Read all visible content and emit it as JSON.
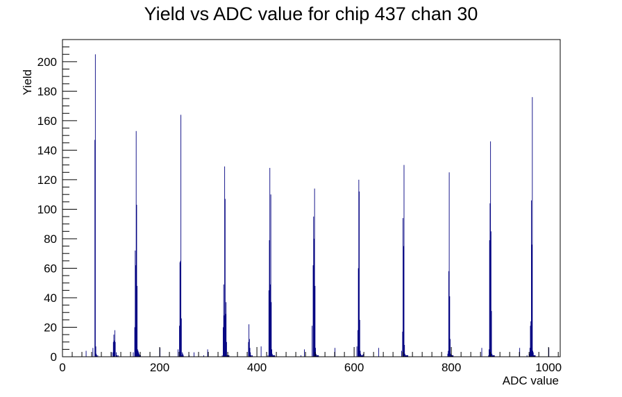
{
  "chart_data": {
    "type": "bar",
    "title": "Yield vs ADC value for chip 437 chan 30",
    "xlabel": "ADC value",
    "ylabel": "Yield",
    "xlim": [
      0,
      1024
    ],
    "ylim": [
      0,
      215
    ],
    "x_ticks": [
      0,
      200,
      400,
      600,
      800,
      1000
    ],
    "y_ticks": [
      0,
      20,
      40,
      60,
      80,
      100,
      120,
      140,
      160,
      180,
      200
    ],
    "grid": false,
    "legend": "none",
    "line_color": "#000080",
    "series": [
      {
        "x": [
          48,
          62,
          66,
          67,
          68,
          69,
          70,
          72,
          100,
          103,
          104,
          105,
          106,
          107,
          108,
          110,
          111,
          112,
          114,
          145,
          148,
          149,
          150,
          151,
          152,
          153,
          154,
          155,
          156,
          157,
          158,
          159,
          160,
          200,
          237,
          240,
          241,
          242,
          243,
          244,
          245,
          246,
          247,
          248,
          260,
          270,
          290,
          298,
          328,
          330,
          331,
          332,
          333,
          334,
          335,
          336,
          337,
          338,
          339,
          340,
          341,
          342,
          382,
          383,
          384,
          385,
          386,
          387,
          388,
          390,
          408,
          422,
          424,
          425,
          426,
          427,
          428,
          429,
          430,
          431,
          432,
          433,
          434,
          435,
          436,
          490,
          497,
          513,
          515,
          516,
          517,
          518,
          519,
          520,
          521,
          522,
          523,
          524,
          525,
          526,
          560,
          605,
          607,
          608,
          609,
          610,
          611,
          612,
          613,
          614,
          615,
          616,
          617,
          618,
          650,
          697,
          699,
          700,
          701,
          702,
          703,
          704,
          705,
          706,
          707,
          708,
          709,
          710,
          792,
          793,
          794,
          795,
          796,
          797,
          798,
          799,
          800,
          801,
          802,
          803,
          862,
          876,
          877,
          878,
          879,
          880,
          881,
          882,
          883,
          884,
          885,
          886,
          887,
          888,
          940,
          955,
          960,
          961,
          962,
          963,
          964,
          965,
          966,
          967,
          968,
          969,
          970,
          971,
          972,
          1000
        ],
        "values": [
          4,
          6,
          147,
          205,
          7,
          2,
          1,
          1,
          3,
          3,
          10,
          15,
          11,
          18,
          10,
          3,
          1,
          1,
          1,
          3,
          20,
          72,
          62,
          153,
          103,
          48,
          5,
          4,
          3,
          2,
          1,
          1,
          1,
          6,
          5,
          21,
          64,
          65,
          164,
          26,
          1,
          3,
          2,
          1,
          1,
          3,
          1,
          5,
          1,
          20,
          49,
          28,
          129,
          107,
          29,
          37,
          10,
          1,
          1,
          1,
          1,
          1,
          10,
          22,
          12,
          6,
          3,
          1,
          1,
          1,
          7,
          1,
          45,
          79,
          128,
          49,
          110,
          37,
          5,
          2,
          1,
          1,
          1,
          1,
          1,
          1,
          5,
          21,
          62,
          95,
          80,
          114,
          48,
          6,
          2,
          1,
          1,
          1,
          1,
          1,
          6,
          7,
          18,
          60,
          120,
          112,
          25,
          4,
          2,
          1,
          1,
          1,
          1,
          2,
          6,
          4,
          17,
          94,
          75,
          130,
          8,
          2,
          1,
          1,
          1,
          1,
          1,
          1,
          2,
          4,
          58,
          125,
          41,
          12,
          2,
          1,
          1,
          1,
          1,
          1,
          6,
          1,
          5,
          79,
          104,
          146,
          85,
          31,
          2,
          1,
          1,
          1,
          1,
          1,
          6,
          1,
          2,
          6,
          21,
          24,
          106,
          76,
          176,
          4,
          3,
          1,
          1,
          1,
          1,
          6
        ]
      }
    ]
  }
}
